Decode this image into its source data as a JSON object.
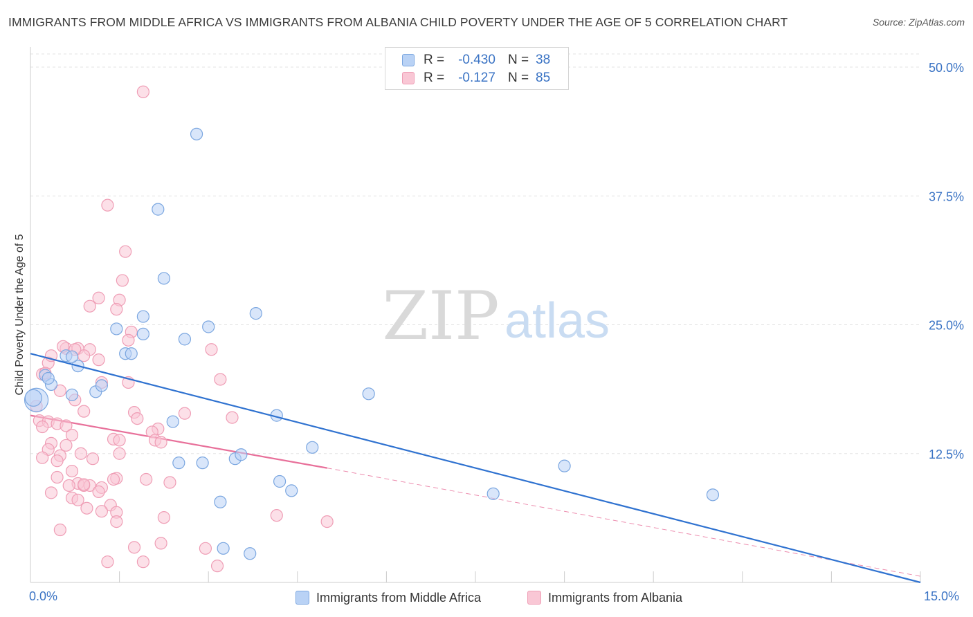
{
  "header": {
    "title": "IMMIGRANTS FROM MIDDLE AFRICA VS IMMIGRANTS FROM ALBANIA CHILD POVERTY UNDER THE AGE OF 5 CORRELATION CHART",
    "source": "Source: ZipAtlas.com"
  },
  "watermark": {
    "zip": "ZIP",
    "atlas": "atlas"
  },
  "legend": {
    "row1": {
      "r_label": "R =",
      "r_value": "-0.430",
      "n_label": "N =",
      "n_value": "38"
    },
    "row2": {
      "r_label": "R =",
      "r_value": "-0.127",
      "n_label": "N =",
      "n_value": "85"
    }
  },
  "bottom_legend": {
    "series1": "Immigrants from Middle Africa",
    "series2": "Immigrants from Albania"
  },
  "axis": {
    "x_min_label": "0.0%",
    "x_max_label": "15.0%",
    "y_label": "Child Poverty Under the Age of 5",
    "y_ticks": [
      "12.5%",
      "25.0%",
      "37.5%",
      "50.0%"
    ]
  },
  "colors": {
    "blue_fill": "#b9d2f5",
    "blue_stroke": "#7aa6e0",
    "blue_line": "#2f72d0",
    "pink_fill": "#f9c7d5",
    "pink_stroke": "#ef9db5",
    "pink_line": "#e8709a",
    "tick_text": "#3a73c4"
  },
  "chart_data": {
    "type": "scatter",
    "xlabel": "",
    "ylabel": "Child Poverty Under the Age of 5",
    "xlim": [
      0,
      15
    ],
    "ylim": [
      0,
      50
    ],
    "y_ticks": [
      12.5,
      25.0,
      37.5,
      50.0
    ],
    "grid": true,
    "legend_position": "top-center",
    "series": [
      {
        "name": "Immigrants from Middle Africa",
        "r": -0.43,
        "n": 38,
        "trend": {
          "x": [
            0,
            15
          ],
          "y": [
            22.2,
            0.0
          ]
        },
        "points": [
          [
            0.1,
            17.7
          ],
          [
            0.25,
            20.1
          ],
          [
            0.35,
            19.2
          ],
          [
            0.6,
            22.0
          ],
          [
            0.7,
            18.2
          ],
          [
            0.8,
            21.0
          ],
          [
            1.1,
            18.5
          ],
          [
            1.2,
            19.1
          ],
          [
            1.45,
            24.6
          ],
          [
            1.6,
            22.2
          ],
          [
            1.7,
            22.2
          ],
          [
            1.9,
            24.1
          ],
          [
            1.9,
            25.8
          ],
          [
            2.15,
            36.2
          ],
          [
            2.25,
            29.5
          ],
          [
            2.4,
            15.6
          ],
          [
            2.5,
            11.6
          ],
          [
            2.6,
            23.6
          ],
          [
            2.8,
            43.5
          ],
          [
            2.9,
            11.6
          ],
          [
            3.0,
            24.8
          ],
          [
            3.2,
            7.8
          ],
          [
            3.25,
            3.3
          ],
          [
            3.45,
            12.0
          ],
          [
            3.55,
            12.4
          ],
          [
            3.7,
            2.8
          ],
          [
            3.8,
            26.1
          ],
          [
            4.15,
            16.2
          ],
          [
            4.2,
            9.8
          ],
          [
            4.4,
            8.9
          ],
          [
            4.75,
            13.1
          ],
          [
            5.7,
            18.3
          ],
          [
            7.8,
            8.6
          ],
          [
            9.0,
            11.3
          ],
          [
            11.5,
            8.5
          ],
          [
            0.05,
            17.9
          ],
          [
            0.3,
            19.8
          ],
          [
            0.7,
            21.9
          ]
        ]
      },
      {
        "name": "Immigrants from Albania",
        "r": -0.127,
        "n": 85,
        "trend": {
          "x": [
            0,
            5
          ],
          "y": [
            16.2,
            11.1
          ]
        },
        "trend_dashed": {
          "x": [
            5,
            15
          ],
          "y": [
            11.1,
            0.6
          ]
        },
        "points": [
          [
            1.9,
            47.6
          ],
          [
            1.3,
            36.6
          ],
          [
            1.6,
            32.1
          ],
          [
            1.55,
            29.3
          ],
          [
            1.15,
            27.6
          ],
          [
            1.5,
            27.4
          ],
          [
            1.0,
            26.8
          ],
          [
            1.45,
            26.5
          ],
          [
            1.7,
            24.3
          ],
          [
            1.65,
            23.5
          ],
          [
            0.6,
            22.7
          ],
          [
            0.8,
            22.7
          ],
          [
            1.0,
            22.6
          ],
          [
            0.9,
            22.0
          ],
          [
            1.15,
            21.6
          ],
          [
            3.05,
            22.6
          ],
          [
            0.3,
            21.3
          ],
          [
            0.2,
            20.2
          ],
          [
            0.25,
            20.3
          ],
          [
            3.2,
            19.7
          ],
          [
            1.2,
            19.4
          ],
          [
            1.65,
            19.4
          ],
          [
            0.5,
            18.6
          ],
          [
            0.75,
            17.7
          ],
          [
            0.1,
            17.1
          ],
          [
            0.9,
            16.6
          ],
          [
            1.75,
            16.5
          ],
          [
            2.6,
            16.4
          ],
          [
            3.4,
            16.0
          ],
          [
            1.8,
            15.9
          ],
          [
            0.15,
            15.7
          ],
          [
            0.3,
            15.6
          ],
          [
            0.45,
            15.4
          ],
          [
            0.2,
            15.1
          ],
          [
            0.6,
            15.2
          ],
          [
            2.15,
            14.9
          ],
          [
            2.05,
            14.6
          ],
          [
            0.7,
            14.3
          ],
          [
            1.4,
            13.9
          ],
          [
            1.5,
            13.8
          ],
          [
            2.1,
            13.8
          ],
          [
            2.2,
            13.6
          ],
          [
            0.35,
            13.5
          ],
          [
            0.6,
            13.3
          ],
          [
            0.3,
            12.9
          ],
          [
            0.85,
            12.5
          ],
          [
            1.5,
            12.5
          ],
          [
            0.5,
            12.3
          ],
          [
            0.2,
            12.1
          ],
          [
            0.45,
            11.8
          ],
          [
            1.05,
            12.0
          ],
          [
            0.7,
            10.8
          ],
          [
            0.45,
            10.2
          ],
          [
            1.45,
            10.1
          ],
          [
            1.95,
            10.0
          ],
          [
            2.35,
            9.7
          ],
          [
            0.8,
            9.6
          ],
          [
            0.9,
            9.4
          ],
          [
            0.65,
            9.4
          ],
          [
            1.0,
            9.4
          ],
          [
            1.2,
            9.2
          ],
          [
            1.15,
            8.8
          ],
          [
            0.35,
            8.7
          ],
          [
            1.4,
            10.0
          ],
          [
            0.7,
            8.2
          ],
          [
            0.8,
            8.0
          ],
          [
            1.35,
            7.5
          ],
          [
            0.95,
            7.2
          ],
          [
            1.2,
            6.9
          ],
          [
            1.45,
            6.8
          ],
          [
            2.25,
            6.3
          ],
          [
            4.15,
            6.5
          ],
          [
            5.0,
            5.9
          ],
          [
            1.45,
            5.9
          ],
          [
            0.5,
            5.1
          ],
          [
            2.2,
            3.8
          ],
          [
            1.75,
            3.4
          ],
          [
            2.95,
            3.3
          ],
          [
            1.3,
            2.0
          ],
          [
            1.9,
            2.0
          ],
          [
            3.15,
            1.6
          ],
          [
            0.9,
            9.5
          ],
          [
            0.55,
            22.9
          ],
          [
            0.35,
            22.0
          ],
          [
            0.75,
            22.6
          ]
        ]
      }
    ]
  }
}
